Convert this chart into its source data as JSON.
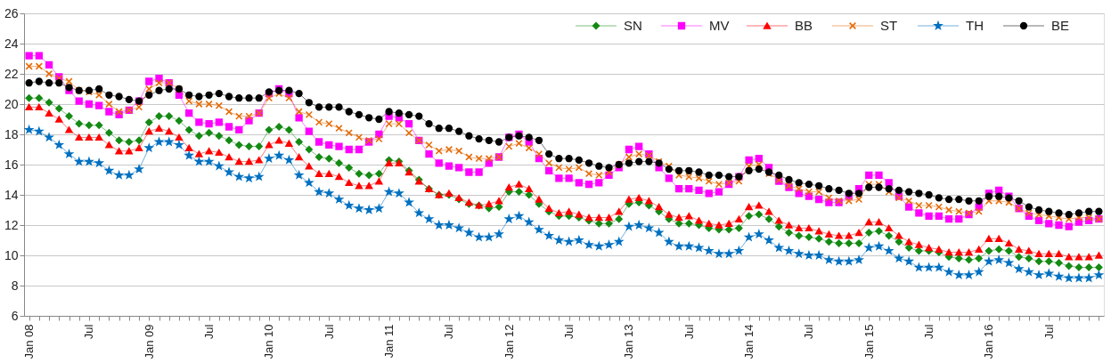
{
  "chart_data": {
    "type": "line",
    "categories": [
      "Jan 08",
      null,
      null,
      null,
      null,
      null,
      "Jul",
      null,
      null,
      null,
      null,
      null,
      "Jan 09",
      null,
      null,
      null,
      null,
      null,
      "Jul",
      null,
      null,
      null,
      null,
      null,
      "Jan 10",
      null,
      null,
      null,
      null,
      null,
      "Jul",
      null,
      null,
      null,
      null,
      null,
      "Jan 11",
      null,
      null,
      null,
      null,
      null,
      "Jul",
      null,
      null,
      null,
      null,
      null,
      "Jan 12",
      null,
      null,
      null,
      null,
      null,
      "Jul",
      null,
      null,
      null,
      null,
      null,
      "Jan 13",
      null,
      null,
      null,
      null,
      null,
      "Jul",
      null,
      null,
      null,
      null,
      null,
      "Jan 14",
      null,
      null,
      null,
      null,
      null,
      "Jul",
      null,
      null,
      null,
      null,
      null,
      "Jan 15",
      null,
      null,
      null,
      null,
      null,
      "Jul",
      null,
      null,
      null,
      null,
      null,
      "Jan 16",
      null,
      null,
      null,
      null,
      null,
      "Jul",
      null,
      null,
      null,
      null,
      null
    ],
    "ylim": [
      6,
      26
    ],
    "yticks": [
      6,
      8,
      10,
      12,
      14,
      16,
      18,
      20,
      22,
      24,
      26
    ],
    "grid": "y",
    "legend": "top right",
    "series": [
      {
        "name": "SN",
        "color": "#138a13",
        "marker": "diamond",
        "values": [
          20.4,
          20.4,
          20.1,
          19.7,
          19.2,
          18.7,
          18.6,
          18.6,
          18.1,
          17.6,
          17.5,
          17.6,
          18.8,
          19.2,
          19.2,
          18.9,
          18.3,
          17.9,
          18.1,
          17.9,
          17.6,
          17.3,
          17.2,
          17.2,
          18.3,
          18.5,
          18.3,
          17.5,
          17.0,
          16.5,
          16.4,
          16.1,
          15.8,
          15.4,
          15.3,
          15.4,
          16.3,
          16.2,
          15.6,
          15.0,
          14.4,
          14.0,
          14.0,
          13.7,
          13.4,
          13.3,
          13.1,
          13.2,
          14.2,
          14.2,
          14.0,
          13.4,
          12.9,
          12.6,
          12.6,
          12.5,
          12.3,
          12.1,
          12.1,
          12.4,
          13.4,
          13.5,
          13.3,
          12.9,
          12.4,
          12.1,
          12.1,
          12.0,
          11.8,
          11.7,
          11.7,
          11.8,
          12.6,
          12.7,
          12.4,
          11.9,
          11.5,
          11.3,
          11.2,
          11.1,
          10.9,
          10.8,
          10.8,
          10.8,
          11.5,
          11.6,
          11.3,
          10.9,
          10.5,
          10.3,
          10.3,
          10.2,
          9.9,
          9.8,
          9.7,
          9.8,
          10.3,
          10.4,
          10.3,
          9.9,
          9.8,
          9.6,
          9.6,
          9.5,
          9.3,
          9.2,
          9.2,
          9.2
        ]
      },
      {
        "name": "MV",
        "color": "#ff00ff",
        "marker": "square",
        "values": [
          23.2,
          23.2,
          22.6,
          21.8,
          20.9,
          20.2,
          20.0,
          19.9,
          19.5,
          19.3,
          19.6,
          20.2,
          21.5,
          21.7,
          21.4,
          20.6,
          19.4,
          18.8,
          18.7,
          18.8,
          18.5,
          18.3,
          18.9,
          19.4,
          20.7,
          21.0,
          20.7,
          19.1,
          18.2,
          17.5,
          17.3,
          17.2,
          17.0,
          17.0,
          17.5,
          18.0,
          19.2,
          19.1,
          18.7,
          17.6,
          16.7,
          16.1,
          15.9,
          15.8,
          15.5,
          15.5,
          16.1,
          16.5,
          17.8,
          18.0,
          17.5,
          16.4,
          15.6,
          15.1,
          15.1,
          14.8,
          14.7,
          14.8,
          15.3,
          15.8,
          17.0,
          17.2,
          16.7,
          15.8,
          15.1,
          14.4,
          14.4,
          14.3,
          14.1,
          14.2,
          14.7,
          15.2,
          16.3,
          16.4,
          15.8,
          14.9,
          14.5,
          14.1,
          13.9,
          13.7,
          13.5,
          13.5,
          13.9,
          14.4,
          15.3,
          15.3,
          14.8,
          13.9,
          13.2,
          12.8,
          12.6,
          12.6,
          12.4,
          12.4,
          12.7,
          13.2,
          14.1,
          14.3,
          13.9,
          13.1,
          12.6,
          12.3,
          12.1,
          12.0,
          11.9,
          12.2,
          12.3,
          12.4
        ]
      },
      {
        "name": "BB",
        "color": "#ff0000",
        "marker": "triangle",
        "values": [
          19.8,
          19.8,
          19.4,
          19.0,
          18.3,
          17.8,
          17.8,
          17.8,
          17.3,
          16.9,
          16.9,
          17.1,
          18.2,
          18.4,
          18.2,
          17.8,
          17.1,
          16.7,
          16.9,
          16.8,
          16.5,
          16.2,
          16.2,
          16.3,
          17.3,
          17.6,
          17.4,
          16.5,
          15.9,
          15.4,
          15.4,
          15.2,
          14.8,
          14.6,
          14.6,
          14.9,
          16.1,
          16.1,
          15.5,
          14.9,
          14.4,
          14.0,
          14.1,
          13.8,
          13.5,
          13.3,
          13.4,
          13.6,
          14.5,
          14.7,
          14.4,
          13.7,
          13.1,
          12.8,
          12.9,
          12.7,
          12.5,
          12.5,
          12.5,
          12.9,
          13.7,
          13.8,
          13.6,
          13.2,
          12.7,
          12.5,
          12.6,
          12.3,
          12.1,
          12.0,
          12.1,
          12.4,
          13.2,
          13.3,
          12.9,
          12.3,
          12.0,
          11.8,
          11.8,
          11.6,
          11.4,
          11.3,
          11.3,
          11.5,
          12.2,
          12.2,
          11.8,
          11.3,
          10.9,
          10.7,
          10.5,
          10.4,
          10.2,
          10.2,
          10.2,
          10.4,
          11.1,
          11.1,
          10.8,
          10.4,
          10.3,
          10.1,
          10.1,
          10.1,
          9.9,
          9.9,
          9.9,
          10.0
        ]
      },
      {
        "name": "ST",
        "color": "#e46c0a",
        "marker": "cross",
        "values": [
          22.5,
          22.5,
          22.0,
          21.7,
          21.5,
          20.9,
          20.8,
          20.6,
          20.0,
          19.5,
          19.6,
          19.8,
          21.0,
          21.4,
          21.4,
          21.0,
          20.2,
          20.0,
          20.0,
          19.9,
          19.5,
          19.2,
          19.2,
          19.4,
          20.4,
          20.7,
          20.4,
          19.5,
          19.3,
          18.8,
          18.7,
          18.4,
          18.1,
          17.8,
          17.6,
          17.7,
          18.7,
          18.7,
          18.1,
          17.6,
          17.3,
          16.9,
          17.0,
          16.9,
          16.5,
          16.4,
          16.4,
          16.5,
          17.2,
          17.4,
          17.1,
          16.7,
          16.1,
          15.8,
          15.7,
          15.8,
          15.4,
          15.3,
          15.5,
          16.0,
          16.5,
          16.7,
          16.6,
          16.2,
          15.9,
          15.3,
          15.2,
          15.1,
          14.9,
          14.7,
          14.8,
          14.9,
          15.9,
          16.0,
          15.4,
          15.0,
          14.6,
          14.4,
          14.2,
          14.2,
          13.8,
          13.6,
          13.6,
          13.7,
          14.7,
          14.7,
          14.2,
          13.8,
          13.6,
          13.3,
          13.3,
          13.2,
          13.0,
          12.9,
          12.8,
          12.9,
          13.6,
          13.6,
          13.5,
          13.1,
          12.8,
          12.7,
          12.6,
          12.5,
          12.4,
          12.5,
          12.5,
          12.4
        ]
      },
      {
        "name": "TH",
        "color": "#0070c0",
        "marker": "star",
        "values": [
          18.3,
          18.2,
          17.8,
          17.3,
          16.7,
          16.2,
          16.2,
          16.1,
          15.6,
          15.3,
          15.3,
          15.7,
          17.1,
          17.5,
          17.5,
          17.3,
          16.6,
          16.2,
          16.2,
          15.9,
          15.5,
          15.2,
          15.1,
          15.2,
          16.4,
          16.6,
          16.3,
          15.3,
          14.8,
          14.2,
          14.1,
          13.7,
          13.3,
          13.1,
          13.0,
          13.1,
          14.2,
          14.1,
          13.5,
          12.8,
          12.4,
          12.0,
          12.0,
          11.8,
          11.5,
          11.2,
          11.2,
          11.4,
          12.4,
          12.6,
          12.2,
          11.7,
          11.3,
          11.0,
          10.9,
          11.0,
          10.7,
          10.6,
          10.7,
          10.9,
          11.9,
          12.0,
          11.8,
          11.5,
          10.9,
          10.6,
          10.6,
          10.5,
          10.3,
          10.1,
          10.1,
          10.3,
          11.2,
          11.4,
          11.0,
          10.5,
          10.3,
          10.1,
          10.0,
          10.0,
          9.7,
          9.6,
          9.6,
          9.7,
          10.5,
          10.6,
          10.3,
          9.8,
          9.6,
          9.2,
          9.2,
          9.2,
          8.9,
          8.7,
          8.7,
          8.9,
          9.6,
          9.7,
          9.5,
          9.1,
          8.9,
          8.7,
          8.8,
          8.6,
          8.5,
          8.5,
          8.5,
          8.7
        ]
      },
      {
        "name": "BE",
        "color": "#000000",
        "marker": "circle",
        "values": [
          21.4,
          21.5,
          21.4,
          21.4,
          21.1,
          20.9,
          20.9,
          21.0,
          20.6,
          20.5,
          20.3,
          20.2,
          20.6,
          20.9,
          21.0,
          21.0,
          20.6,
          20.5,
          20.6,
          20.7,
          20.5,
          20.4,
          20.4,
          20.4,
          20.8,
          20.9,
          20.9,
          20.7,
          20.1,
          19.8,
          19.8,
          19.8,
          19.5,
          19.3,
          19.1,
          19.0,
          19.5,
          19.4,
          19.3,
          19.2,
          18.7,
          18.4,
          18.4,
          18.2,
          17.9,
          17.7,
          17.6,
          17.5,
          17.8,
          17.9,
          17.8,
          17.6,
          16.7,
          16.4,
          16.4,
          16.3,
          16.1,
          15.9,
          15.8,
          16.0,
          16.1,
          16.2,
          16.2,
          16.1,
          15.7,
          15.6,
          15.6,
          15.5,
          15.3,
          15.3,
          15.2,
          15.2,
          15.6,
          15.7,
          15.5,
          15.3,
          15.0,
          14.8,
          14.7,
          14.6,
          14.4,
          14.3,
          14.1,
          14.1,
          14.5,
          14.5,
          14.4,
          14.3,
          14.2,
          14.1,
          14.0,
          13.8,
          13.7,
          13.7,
          13.6,
          13.6,
          13.9,
          13.9,
          13.8,
          13.6,
          13.2,
          13.0,
          12.9,
          12.8,
          12.7,
          12.8,
          12.9,
          12.9
        ]
      }
    ]
  }
}
